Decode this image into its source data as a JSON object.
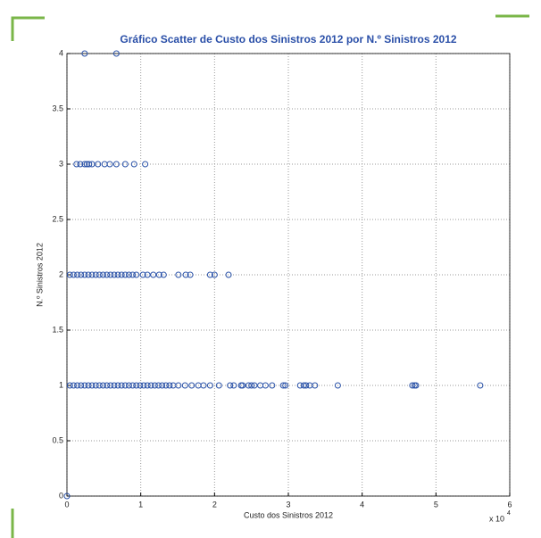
{
  "chart_data": {
    "type": "scatter",
    "title": "Gráfico Scatter de Custo dos Sinistros 2012 por N.º Sinistros 2012",
    "x_label": "Custo dos Sinistros 2012",
    "y_label": "N.º Sinistros 2012",
    "x_multiplier": {
      "base": "x 10",
      "exponent": "4"
    },
    "xlim": [
      0,
      6
    ],
    "xticks": [
      0,
      1,
      2,
      3,
      4,
      5,
      6
    ],
    "ylim": [
      0,
      4
    ],
    "yticks": [
      0,
      0.5,
      1,
      1.5,
      2,
      2.5,
      3,
      3.5,
      4
    ],
    "grid": true,
    "color": "#2a52a8",
    "x": [
      0,
      0.24,
      0.67,
      0.13,
      0.18,
      0.24,
      0.27,
      0.3,
      0.34,
      0.42,
      0.51,
      0.58,
      0.67,
      0.79,
      0.91,
      1.06,
      0.04,
      0.09,
      0.14,
      0.19,
      0.24,
      0.29,
      0.34,
      0.39,
      0.44,
      0.49,
      0.54,
      0.59,
      0.64,
      0.69,
      0.74,
      0.79,
      0.84,
      0.89,
      0.94,
      1.03,
      1.09,
      1.17,
      1.25,
      1.31,
      1.51,
      1.61,
      1.67,
      1.94,
      2.0,
      2.19,
      0.04,
      0.09,
      0.14,
      0.19,
      0.24,
      0.29,
      0.34,
      0.39,
      0.44,
      0.49,
      0.54,
      0.59,
      0.64,
      0.69,
      0.74,
      0.79,
      0.84,
      0.89,
      0.94,
      0.99,
      1.04,
      1.09,
      1.14,
      1.19,
      1.24,
      1.29,
      1.34,
      1.39,
      1.44,
      1.51,
      1.6,
      1.69,
      1.78,
      1.85,
      1.94,
      2.06,
      2.21,
      2.26,
      2.36,
      2.38,
      2.46,
      2.5,
      2.54,
      2.62,
      2.69,
      2.78,
      2.93,
      2.96,
      3.16,
      3.21,
      3.24,
      3.29,
      3.36,
      3.67,
      4.68,
      4.71,
      4.73,
      5.6
    ],
    "values": [
      0,
      4,
      4,
      3,
      3,
      3,
      3,
      3,
      3,
      3,
      3,
      3,
      3,
      3,
      3,
      3,
      2,
      2,
      2,
      2,
      2,
      2,
      2,
      2,
      2,
      2,
      2,
      2,
      2,
      2,
      2,
      2,
      2,
      2,
      2,
      2,
      2,
      2,
      2,
      2,
      2,
      2,
      2,
      2,
      2,
      2,
      1,
      1,
      1,
      1,
      1,
      1,
      1,
      1,
      1,
      1,
      1,
      1,
      1,
      1,
      1,
      1,
      1,
      1,
      1,
      1,
      1,
      1,
      1,
      1,
      1,
      1,
      1,
      1,
      1,
      1,
      1,
      1,
      1,
      1,
      1,
      1,
      1,
      1,
      1,
      1,
      1,
      1,
      1,
      1,
      1,
      1,
      1,
      1,
      1,
      1,
      1,
      1,
      1,
      1,
      1,
      1,
      1,
      1
    ]
  }
}
